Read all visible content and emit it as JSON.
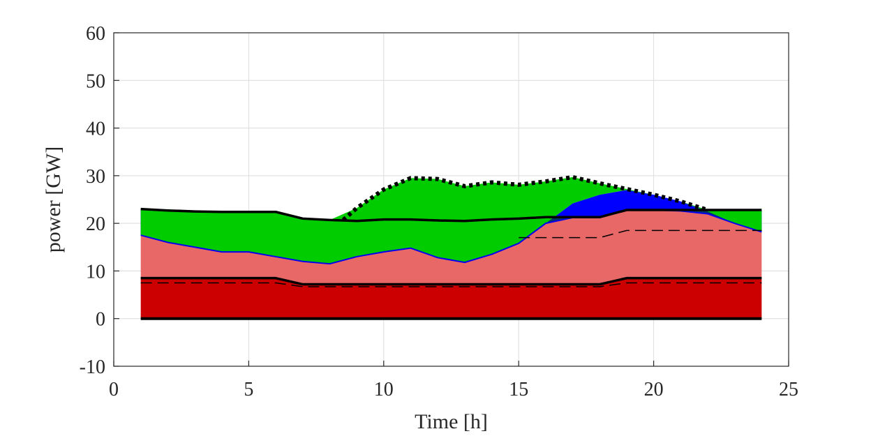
{
  "chart_data": {
    "type": "area",
    "title": "",
    "xlabel": "Time [h]",
    "ylabel": "power [GW]",
    "xlim": [
      0,
      25
    ],
    "ylim": [
      -10,
      60
    ],
    "xticks": [
      0,
      5,
      10,
      15,
      20,
      25
    ],
    "yticks": [
      -10,
      0,
      10,
      20,
      30,
      40,
      50,
      60
    ],
    "grid": true,
    "x": [
      1,
      2,
      3,
      4,
      5,
      6,
      7,
      8,
      9,
      10,
      11,
      12,
      13,
      14,
      15,
      16,
      17,
      18,
      19,
      20,
      21,
      22,
      23,
      24
    ],
    "layers": [
      {
        "base": "zero",
        "color": "#cc0000",
        "top": [
          8.5,
          8.5,
          8.5,
          8.5,
          8.5,
          8.5,
          7.2,
          7.2,
          7.2,
          7.2,
          7.2,
          7.2,
          7.2,
          7.2,
          7.2,
          7.2,
          7.2,
          7.2,
          8.5,
          8.5,
          8.5,
          8.5,
          8.5,
          8.5
        ]
      },
      {
        "base": "prev",
        "color": "#e86868",
        "top": [
          17.5,
          16,
          15,
          14,
          14,
          13,
          12,
          11.5,
          13,
          14,
          14.8,
          12.8,
          11.8,
          13.5,
          15.8,
          20,
          21.2,
          21.4,
          22.8,
          22.8,
          22.6,
          22,
          20,
          18.2
        ]
      },
      {
        "base": "prev",
        "color": "#003366",
        "top": [
          23,
          22.7,
          22.5,
          22.4,
          22.4,
          22.4,
          21,
          20.7,
          20.5,
          20.8,
          20.8,
          20.6,
          20.5,
          20.8,
          21,
          21.3,
          21.3,
          21.3,
          22.8,
          22.8,
          22.8,
          22.8,
          22.8,
          22.8
        ]
      },
      {
        "base": "prev",
        "color": "#0000ff",
        "top": [
          17.5,
          16,
          15,
          14,
          14,
          13,
          12,
          11.5,
          13,
          14,
          14.8,
          12.8,
          11.8,
          13.5,
          15.8,
          20,
          24.2,
          26,
          27,
          26,
          24.6,
          22.5,
          20,
          18.3
        ]
      },
      {
        "base": "prev",
        "color": "#00cc00",
        "top": [
          23,
          22.7,
          22.5,
          22.4,
          22.4,
          22.4,
          21,
          20.7,
          23.2,
          27.1,
          29.5,
          29.3,
          27.8,
          28.6,
          28.1,
          28.8,
          29.7,
          28.4,
          27.2,
          26,
          24.6,
          22.8,
          22.8,
          22.8
        ]
      }
    ],
    "lines": [
      {
        "style": "solid",
        "color": "#000000",
        "width": 4,
        "values": [
          0,
          0,
          0,
          0,
          0,
          0,
          0,
          0,
          0,
          0,
          0,
          0,
          0,
          0,
          0,
          0,
          0,
          0,
          0,
          0,
          0,
          0,
          0,
          0
        ]
      },
      {
        "style": "solid",
        "color": "#000000",
        "width": 3.5,
        "values": [
          8.5,
          8.5,
          8.5,
          8.5,
          8.5,
          8.5,
          7.2,
          7.2,
          7.2,
          7.2,
          7.2,
          7.2,
          7.2,
          7.2,
          7.2,
          7.2,
          7.2,
          7.2,
          8.5,
          8.5,
          8.5,
          8.5,
          8.5,
          8.5
        ]
      },
      {
        "style": "dashed",
        "color": "#000000",
        "width": 1.5,
        "values": [
          7.5,
          7.5,
          7.5,
          7.5,
          7.5,
          7.5,
          6.7,
          6.7,
          6.7,
          6.7,
          6.7,
          6.7,
          6.7,
          6.7,
          6.7,
          6.7,
          6.7,
          6.7,
          7.5,
          7.5,
          7.5,
          7.5,
          7.5,
          7.5
        ]
      },
      {
        "style": "solid",
        "color": "#0000ee",
        "width": 2,
        "values": [
          17.5,
          16,
          15,
          14,
          14,
          13,
          12,
          11.5,
          13,
          14,
          14.8,
          12.8,
          11.8,
          13.5,
          15.8,
          20,
          21.2,
          21.4,
          22.8,
          22.8,
          22.6,
          22,
          20,
          18.2
        ]
      },
      {
        "style": "dashed",
        "color": "#000000",
        "width": 1.5,
        "x": [
          15,
          16,
          17,
          18,
          19,
          20,
          21,
          22,
          23,
          24
        ],
        "values": [
          17,
          17,
          17,
          17,
          18.5,
          18.5,
          18.5,
          18.5,
          18.5,
          18.5
        ]
      },
      {
        "style": "solid",
        "color": "#000000",
        "width": 3.5,
        "values": [
          23,
          22.7,
          22.5,
          22.4,
          22.4,
          22.4,
          21,
          20.7,
          20.5,
          20.8,
          20.8,
          20.6,
          20.5,
          20.8,
          21,
          21.3,
          21.3,
          21.3,
          22.8,
          22.8,
          22.8,
          22.8,
          22.8,
          22.8
        ]
      },
      {
        "style": "dotted",
        "color": "#000000",
        "width": 6,
        "x": [
          8.5,
          9,
          10,
          11,
          12,
          13,
          14,
          15,
          16,
          17,
          18,
          19,
          20,
          21,
          22
        ],
        "values": [
          20.7,
          23.2,
          27.1,
          29.5,
          29.3,
          27.8,
          28.6,
          28.1,
          28.8,
          29.7,
          28.4,
          27.2,
          26,
          24.6,
          22.8
        ]
      }
    ]
  }
}
